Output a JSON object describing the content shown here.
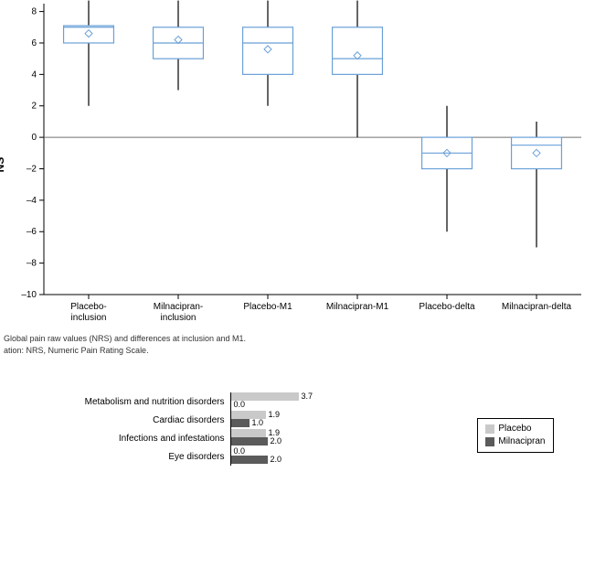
{
  "boxplot": {
    "type": "boxplot",
    "ylabel": "NS",
    "ylabel_fontsize": 12,
    "ylim": [
      -10,
      8.5
    ],
    "ytick_step": 2,
    "yticks": [
      -10,
      -8,
      -6,
      -4,
      -2,
      0,
      2,
      4,
      6,
      8
    ],
    "tick_fontsize": 10,
    "category_fontsize": 10,
    "background_color": "#ffffff",
    "axis_color": "#000000",
    "zero_line_color": "#6f6f6f",
    "box_stroke": "#6aa0d8",
    "box_fill": "#ffffff",
    "whisker_color": "#000000",
    "median_color": "#6aa0d8",
    "mean_marker_color": "#6aa0d8",
    "mean_marker": "diamond",
    "box_half_width": 0.28,
    "line_width": 1.2,
    "categories": [
      {
        "label_line1": "Placebo-",
        "label_line2": "inclusion",
        "q1": 6.0,
        "median": 7.0,
        "q3": 7.1,
        "mean": 6.6,
        "whisker_low": 2.0,
        "whisker_high": 8.7
      },
      {
        "label_line1": "Milnacipran-",
        "label_line2": "inclusion",
        "q1": 5.0,
        "median": 6.0,
        "q3": 7.0,
        "mean": 6.2,
        "whisker_low": 3.0,
        "whisker_high": 8.7
      },
      {
        "label_line1": "Placebo-M1",
        "label_line2": "",
        "q1": 4.0,
        "median": 6.0,
        "q3": 7.0,
        "mean": 5.6,
        "whisker_low": 2.0,
        "whisker_high": 8.7
      },
      {
        "label_line1": "Milnacipran-M1",
        "label_line2": "",
        "q1": 4.0,
        "median": 5.0,
        "q3": 7.0,
        "mean": 5.2,
        "whisker_low": 0.0,
        "whisker_high": 8.7
      },
      {
        "label_line1": "Placebo-delta",
        "label_line2": "",
        "q1": -2.0,
        "median": -1.0,
        "q3": 0.0,
        "mean": -1.0,
        "whisker_low": -6.0,
        "whisker_high": 2.0
      },
      {
        "label_line1": "Milnacipran-delta",
        "label_line2": "",
        "q1": -2.0,
        "median": -0.5,
        "q3": 0.0,
        "mean": -1.0,
        "whisker_low": -7.0,
        "whisker_high": 1.0
      }
    ]
  },
  "caption": {
    "line1": "Global pain raw values (NRS) and differences at inclusion and M1.",
    "line2": "ation: NRS, Numeric Pain Rating Scale."
  },
  "barchart": {
    "type": "bar-horizontal-grouped",
    "value_fontsize": 9,
    "label_fontsize": 10,
    "legend_fontsize": 10,
    "axis_color": "#000000",
    "scale_max": 10,
    "series": [
      {
        "name": "Placebo",
        "color": "#c9c9c9"
      },
      {
        "name": "Milnacipran",
        "color": "#5b5b5b"
      }
    ],
    "rows": [
      {
        "label": "Metabolism and nutrition disorders",
        "values": [
          3.7,
          0.0
        ]
      },
      {
        "label": "Cardiac disorders",
        "values": [
          1.9,
          1.0
        ]
      },
      {
        "label": "Infections and infestations",
        "values": [
          1.9,
          2.0
        ]
      },
      {
        "label": "Eye disorders",
        "values": [
          0.0,
          2.0
        ]
      }
    ]
  }
}
